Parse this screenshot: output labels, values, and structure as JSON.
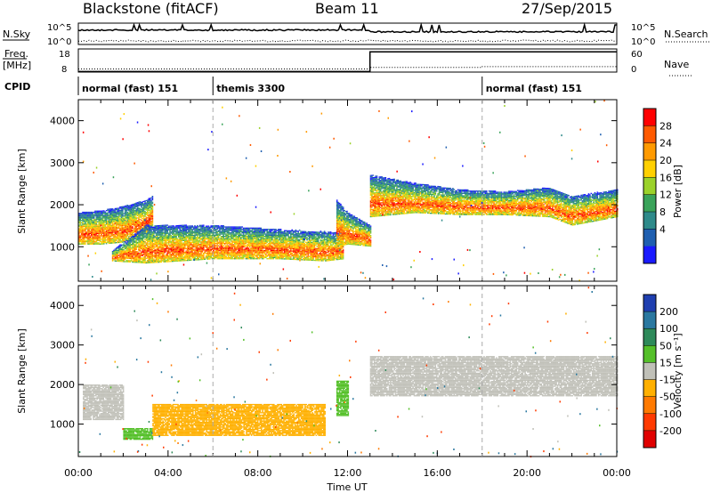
{
  "header": {
    "station": "Blackstone (fitACF)",
    "beam": "Beam 11",
    "date": "27/Sep/2015"
  },
  "summary": {
    "nsky_label": "N.Sky",
    "nsky_ticks": [
      "10^5",
      "10^0"
    ],
    "nsearch_label": "N.Search",
    "nsearch_ticks": [
      "10^5",
      "10^0"
    ],
    "freq_label_1": "Freq.",
    "freq_label_2": "[MHz]",
    "freq_ticks": [
      "18",
      "8"
    ],
    "nave_label": "Nave",
    "nave_ticks": [
      "60",
      "0"
    ],
    "cpid_label": "CPID",
    "cpid_segments": [
      {
        "label": "normal (fast) 151",
        "start": 0,
        "end": 6
      },
      {
        "label": "themis 3300",
        "start": 6,
        "end": 18
      },
      {
        "label": "normal (fast) 151",
        "start": 18,
        "end": 24
      }
    ],
    "freq_series": {
      "x": [
        0,
        13,
        13,
        24
      ],
      "y": [
        9,
        9,
        17.5,
        17.5
      ]
    },
    "nave_series": {
      "x": [
        0,
        13,
        13,
        18,
        18,
        24
      ],
      "y": [
        8,
        8,
        12,
        12,
        14,
        14
      ]
    }
  },
  "power_panel": {
    "ylabel": "Slant Range [km]",
    "colorbar_label": "Power [dB]",
    "colorbar_ticks": [
      "28",
      "24",
      "20",
      "16",
      "12",
      "8",
      "4"
    ],
    "colorbar_colors": [
      "#ff0000",
      "#ff5a00",
      "#ff9a00",
      "#ffd000",
      "#9bd22a",
      "#3aa35a",
      "#2e8a8a",
      "#1f5fb0",
      "#1a1aff"
    ]
  },
  "velocity_panel": {
    "ylabel": "Slant Range [km]",
    "colorbar_label": "Velocity [m s⁻¹]",
    "colorbar_ticks": [
      "200",
      "100",
      "50",
      "15",
      "-15",
      "-50",
      "-100",
      "-200"
    ],
    "colorbar_colors": [
      "#1f3fb0",
      "#2a78a0",
      "#2e8a5a",
      "#55c02a",
      "#c0c0b8",
      "#ffb000",
      "#ff7a00",
      "#ff3a00",
      "#e00000"
    ]
  },
  "x_axis": {
    "label": "Time UT",
    "ticks": [
      "00:00",
      "04:00",
      "08:00",
      "12:00",
      "16:00",
      "20:00",
      "00:00"
    ]
  },
  "y_axis": {
    "ticks": [
      "1000",
      "2000",
      "3000",
      "4000"
    ]
  },
  "chart_data": {
    "type": "heatmap",
    "xlabel": "Time UT",
    "ylabel": "Slant Range [km]",
    "xlim": [
      0,
      24
    ],
    "ylim": [
      180,
      4500
    ],
    "power_echo_bands": [
      {
        "t": [
          0.0,
          1.0,
          2.0,
          3.0,
          3.3
        ],
        "range_low": [
          1050,
          1050,
          1100,
          1300,
          1500
        ],
        "range_high": [
          1800,
          1850,
          1950,
          2100,
          2200
        ],
        "peak_power_db": 26
      },
      {
        "t": [
          1.5,
          3.0,
          6.0,
          9.0,
          11.0,
          11.8
        ],
        "range_low": [
          650,
          600,
          700,
          700,
          650,
          700
        ],
        "range_high": [
          900,
          1500,
          1500,
          1400,
          1350,
          1300
        ],
        "peak_power_db": 28
      },
      {
        "t": [
          11.5,
          12.0,
          13.0
        ],
        "range_low": [
          1000,
          1050,
          1000
        ],
        "range_high": [
          2100,
          1800,
          1500
        ],
        "peak_power_db": 24
      },
      {
        "t": [
          13.0,
          15.0,
          17.0,
          19.0,
          21.0,
          22.0,
          24.0
        ],
        "range_low": [
          1700,
          1800,
          1750,
          1750,
          1700,
          1500,
          1700
        ],
        "range_high": [
          2700,
          2500,
          2350,
          2300,
          2400,
          2200,
          2350
        ],
        "peak_power_db": 22
      }
    ],
    "velocity_regions": [
      {
        "t_start": 0.2,
        "t_end": 2.0,
        "range_low": 1100,
        "range_high": 2000,
        "velocity_ms": 0
      },
      {
        "t_start": 2.0,
        "t_end": 3.3,
        "range_low": 600,
        "range_high": 900,
        "velocity_ms": 30
      },
      {
        "t_start": 3.3,
        "t_end": 11.0,
        "range_low": 700,
        "range_high": 1500,
        "velocity_ms": -30
      },
      {
        "t_start": 11.5,
        "t_end": 12.0,
        "range_low": 1200,
        "range_high": 2100,
        "velocity_ms": 40
      },
      {
        "t_start": 13.0,
        "t_end": 24.0,
        "range_low": 1700,
        "range_high": 2700,
        "velocity_ms": 0
      }
    ]
  }
}
